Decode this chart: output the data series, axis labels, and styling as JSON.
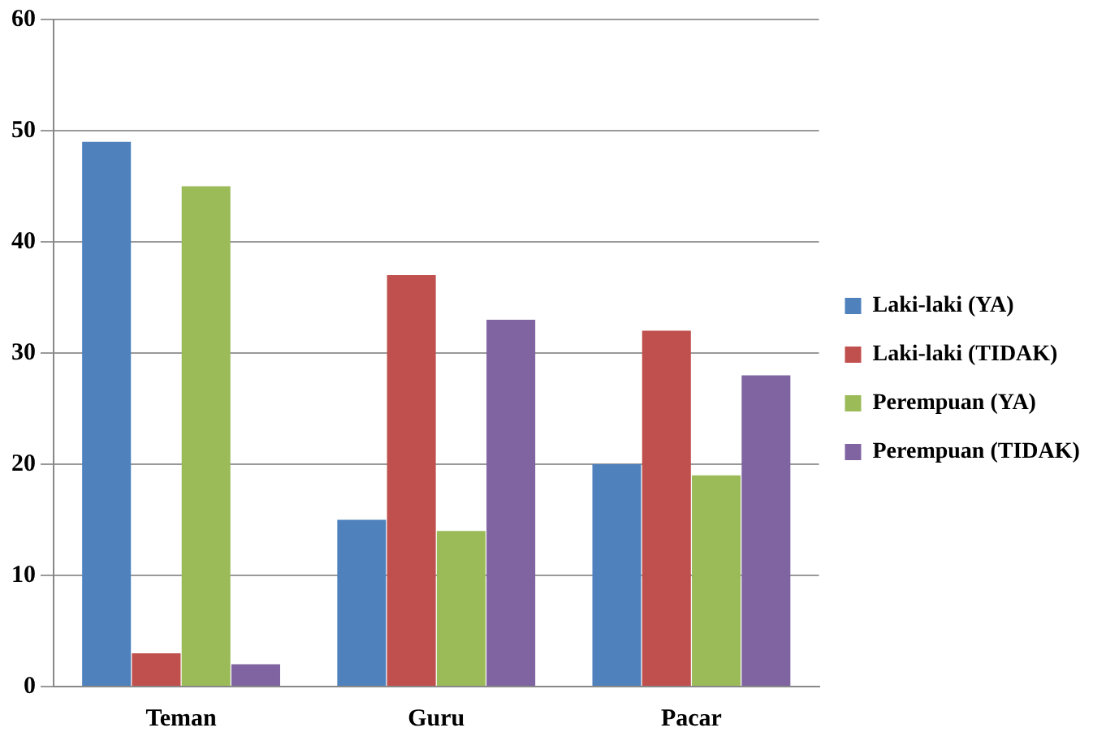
{
  "chart_data": {
    "type": "bar",
    "categories": [
      "Teman",
      "Guru",
      "Pacar"
    ],
    "series": [
      {
        "name": "Laki-laki (YA)",
        "color": "#4f81bd",
        "values": [
          49,
          15,
          20
        ]
      },
      {
        "name": "Laki-laki (TIDAK)",
        "color": "#c0504d",
        "values": [
          3,
          37,
          32
        ]
      },
      {
        "name": "Perempuan (YA)",
        "color": "#9bbb59",
        "values": [
          45,
          14,
          19
        ]
      },
      {
        "name": "Perempuan (TIDAK)",
        "color": "#8064a2",
        "values": [
          2,
          33,
          28
        ]
      }
    ],
    "ylim": [
      0,
      60
    ],
    "yticks": [
      0,
      10,
      20,
      30,
      40,
      50,
      60
    ],
    "grid": "y",
    "legend": "right"
  }
}
